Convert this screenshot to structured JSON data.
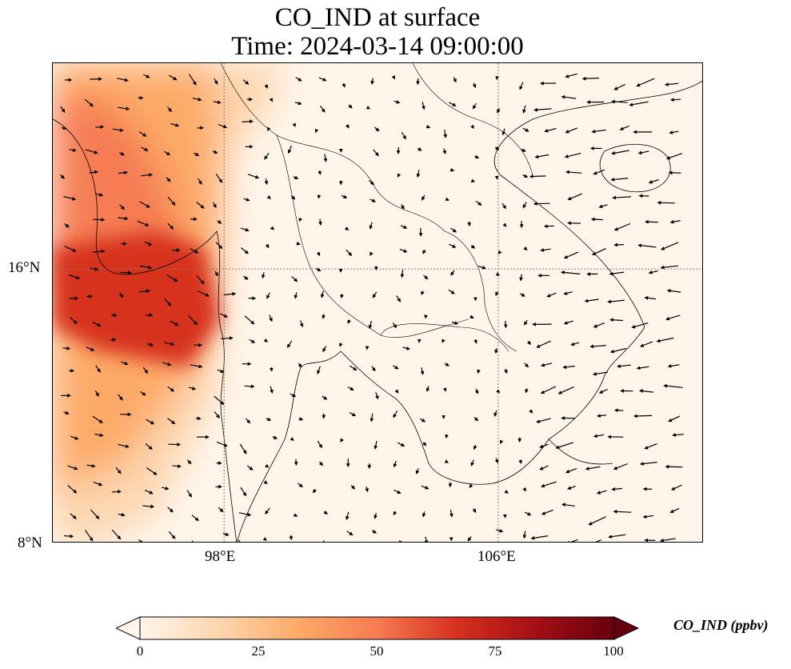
{
  "title": {
    "line1": "CO_IND at surface",
    "line2": "Time: 2024-03-14 09:00:00"
  },
  "map": {
    "variable": "CO_IND",
    "units": "ppbv",
    "colormap": [
      "#fff5eb",
      "#fdd6ae",
      "#fdaa67",
      "#f67b52",
      "#d7301f",
      "#a50f15",
      "#67000d"
    ],
    "frame_color": "#000000",
    "coastline_color": "#000000",
    "gridline_color": "#8a7a70",
    "lon_ticks": [
      98,
      106
    ],
    "lat_ticks": [
      16,
      8
    ],
    "lon_labels": [
      "98°E",
      "106°E"
    ],
    "lat_labels": [
      "16°N",
      "8°N"
    ],
    "extent_lon": [
      93,
      112
    ],
    "extent_lat": [
      8,
      22
    ]
  },
  "colorbar": {
    "label": "CO_IND (ppbv)",
    "ticks": [
      "0",
      "25",
      "50",
      "75",
      "100"
    ],
    "min": 0,
    "max": 100,
    "extend": "both"
  }
}
